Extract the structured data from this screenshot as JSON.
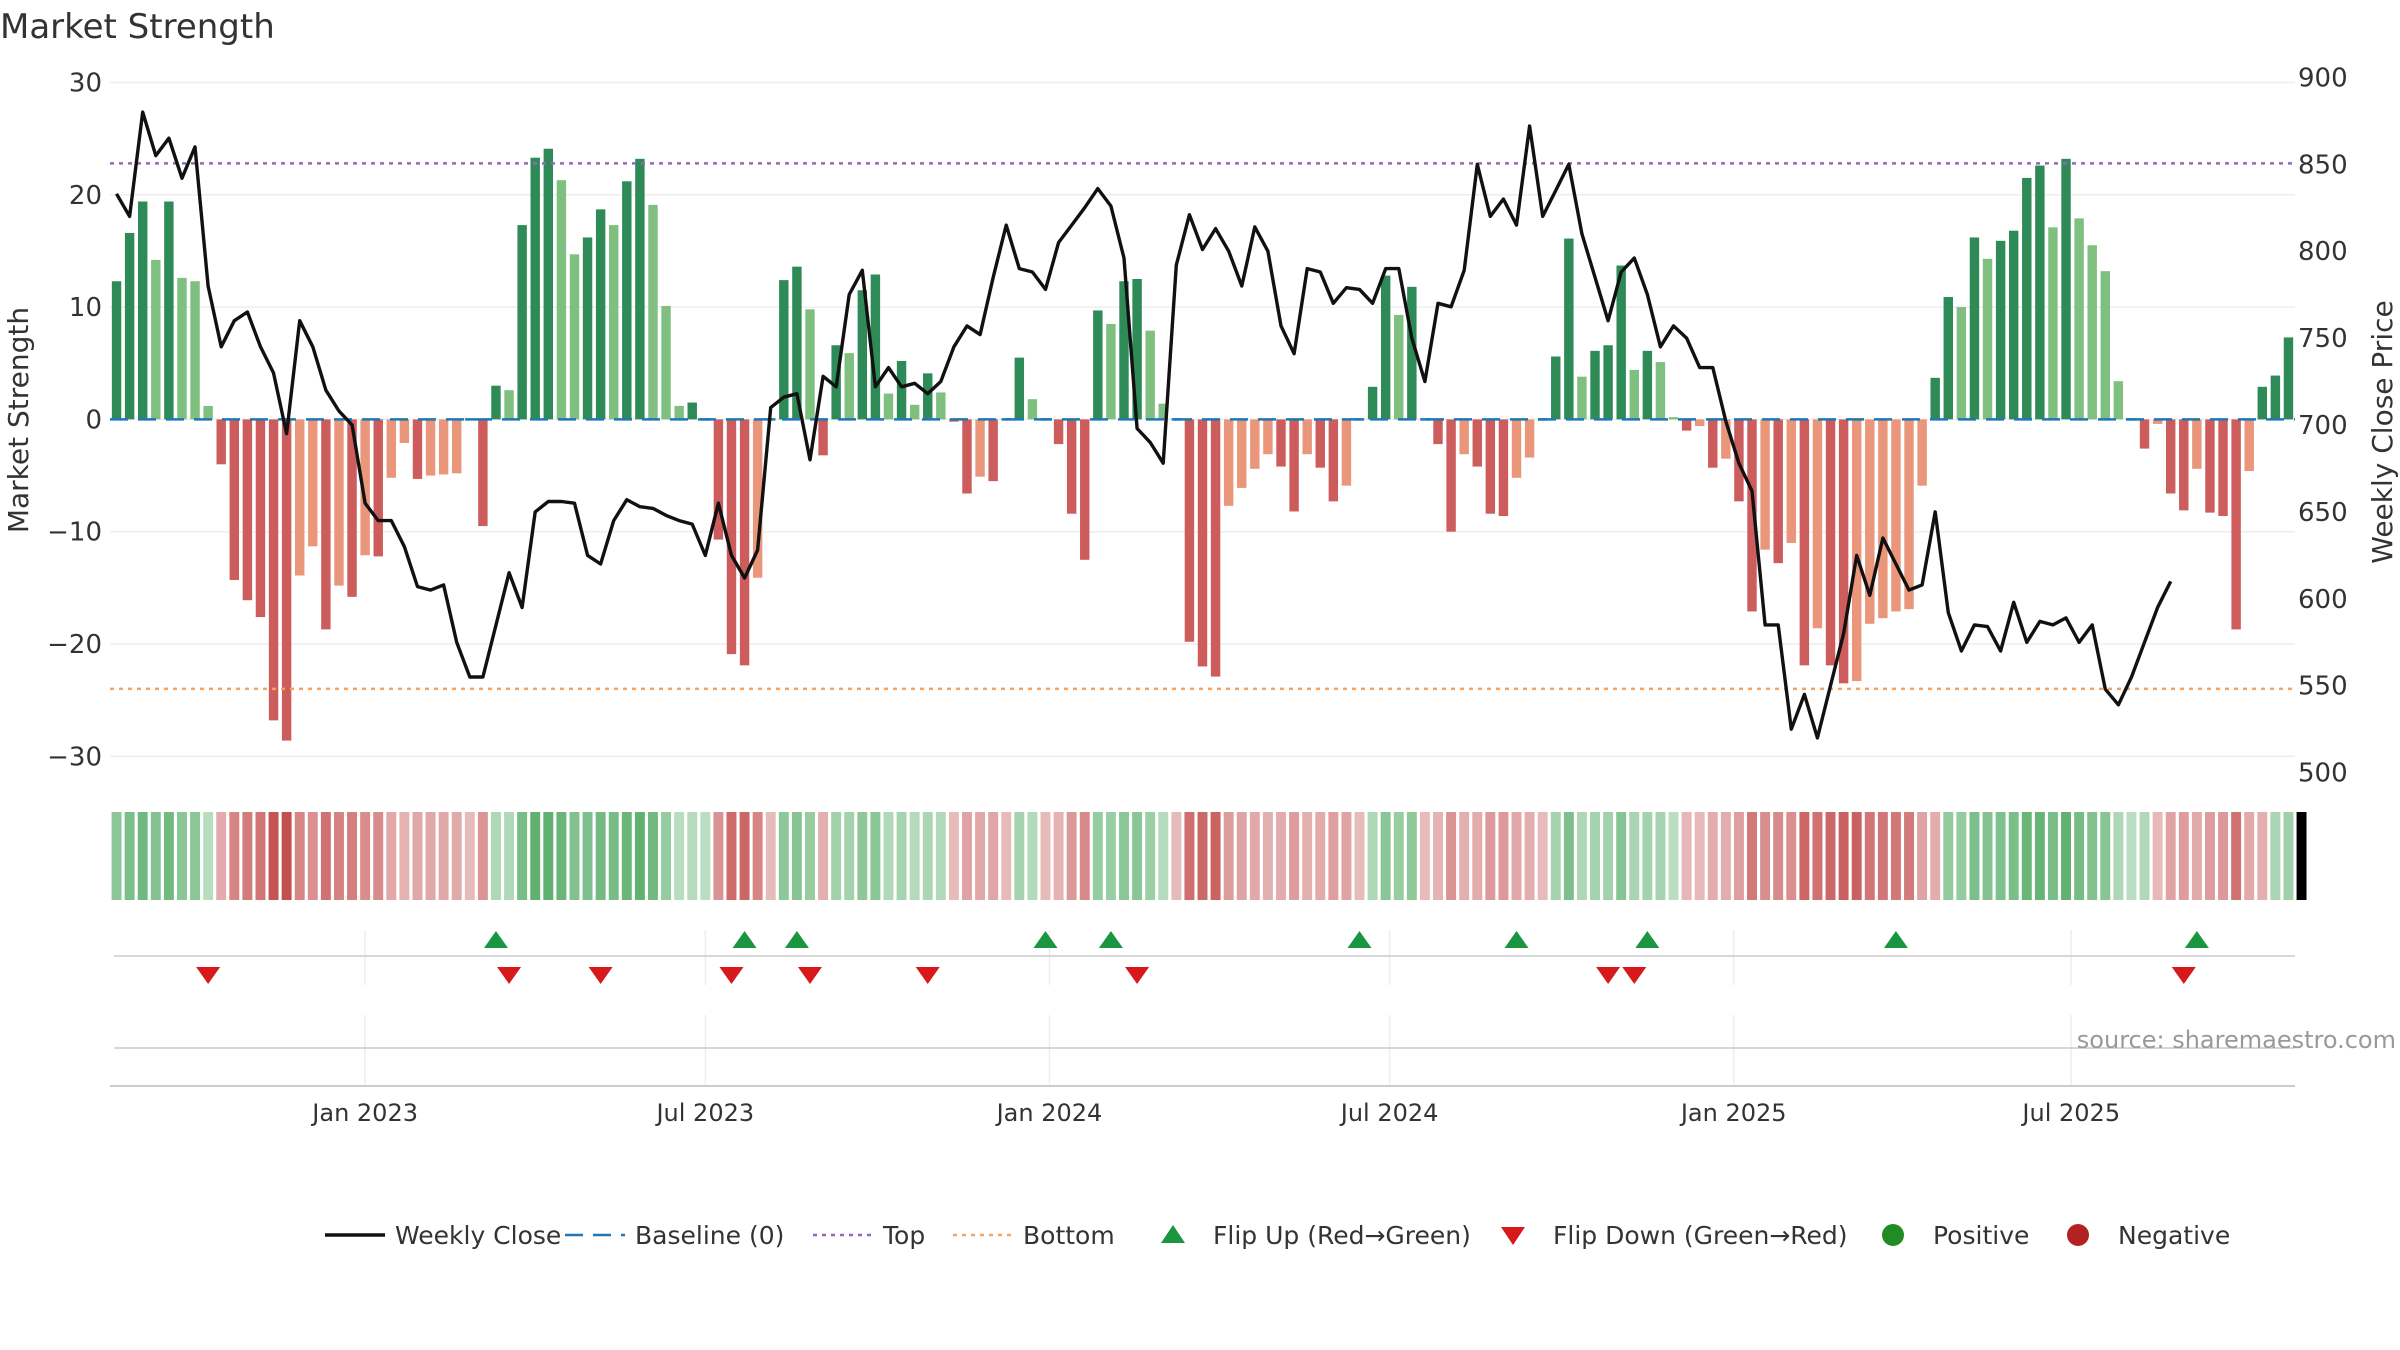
{
  "chart_data": {
    "type": "bar",
    "title": "Market Strength",
    "ylabel_left": "Market Strength",
    "ylabel_right": "Weekly Close Price",
    "ylim_left": [
      -33,
      32
    ],
    "ylim_right": [
      490,
      910
    ],
    "yticks_left": [
      30,
      20,
      10,
      0,
      -10,
      -20,
      -30
    ],
    "yticks_left_labels": [
      "30",
      "20",
      "10",
      "0",
      "−10",
      "−20",
      "−30"
    ],
    "yticks_right": [
      900,
      850,
      800,
      750,
      700,
      650,
      600,
      550,
      500
    ],
    "yticks_right_labels": [
      "900",
      "850",
      "800",
      "750",
      "700",
      "650",
      "600",
      "550",
      "500"
    ],
    "x_start_week": -19,
    "xticks": [
      {
        "label": "Jan 2023",
        "week": 0
      },
      {
        "label": "Jul 2023",
        "week": 26
      },
      {
        "label": "Jan 2024",
        "week": 52.3
      },
      {
        "label": "Jul 2024",
        "week": 78.3
      },
      {
        "label": "Jan 2025",
        "week": 104.6
      },
      {
        "label": "Jul 2025",
        "week": 130.4
      }
    ],
    "top_threshold": 22.8,
    "bottom_threshold": -24,
    "strength": [
      12.3,
      16.6,
      19.4,
      14.2,
      19.4,
      12.6,
      12.3,
      1.2,
      -4,
      -14.3,
      -16.1,
      -17.6,
      -26.8,
      -28.6,
      -13.9,
      -11.3,
      -18.7,
      -14.8,
      -15.8,
      -12.1,
      -12.2,
      -5.2,
      -2.1,
      -5.3,
      -5,
      -4.9,
      -4.8,
      0,
      -9.5,
      3,
      2.6,
      17.3,
      23.3,
      24.1,
      21.3,
      14.7,
      16.2,
      18.7,
      17.3,
      21.2,
      23.2,
      19.1,
      10.1,
      1.2,
      1.5,
      0,
      -10.7,
      -20.9,
      -21.9,
      -14.1,
      0,
      12.4,
      13.6,
      9.8,
      -3.2,
      6.6,
      5.9,
      11.5,
      12.9,
      2.3,
      5.2,
      1.3,
      4.1,
      2.4,
      -0.2,
      -6.6,
      -5.1,
      -5.5,
      0,
      5.5,
      1.8,
      0,
      -2.2,
      -8.4,
      -12.5,
      9.7,
      8.5,
      12.3,
      12.5,
      7.9,
      1.4,
      0,
      -19.8,
      -22,
      -22.9,
      -7.7,
      -6.1,
      -4.4,
      -3.1,
      -4.2,
      -8.2,
      -3.1,
      -4.3,
      -7.3,
      -5.9,
      0,
      2.9,
      12.8,
      9.3,
      11.8,
      0,
      -2.2,
      -10,
      -3.1,
      -4.2,
      -8.4,
      -8.6,
      -5.2,
      -3.4,
      0,
      5.6,
      16.1,
      3.8,
      6.1,
      6.6,
      13.7,
      4.4,
      6.1,
      5.1,
      0.2,
      -1,
      -0.6,
      -4.3,
      -3.5,
      -7.3,
      -17.1,
      -11.6,
      -12.8,
      -11,
      -21.9,
      -18.6,
      -21.9,
      -23.5,
      -23.3,
      -18.2,
      -17.7,
      -17.1,
      -16.9,
      -5.9,
      3.7,
      10.9,
      10,
      16.2,
      14.3,
      15.9,
      16.8,
      21.5,
      22.6,
      17.1,
      23.2,
      17.9,
      15.5,
      13.2,
      3.4,
      0,
      -2.6,
      -0.4,
      -6.6,
      -8.1,
      -4.4,
      -8.3,
      -8.6,
      -18.7,
      -4.6,
      2.9,
      3.9,
      7.3
    ],
    "weekly_close": [
      833,
      820,
      880,
      855,
      865,
      842,
      860,
      780,
      745,
      760,
      765,
      745,
      730,
      695,
      760,
      745,
      720,
      708,
      700,
      655,
      645,
      645,
      630,
      607,
      605,
      608,
      575,
      555,
      555,
      585,
      615,
      595,
      650,
      656,
      656,
      655,
      625,
      620,
      645,
      657,
      653,
      652,
      648,
      645,
      643,
      625,
      655,
      625,
      612,
      628,
      710,
      716,
      718,
      680,
      728,
      722,
      775,
      789,
      722,
      733,
      722,
      724,
      718,
      725,
      745,
      757,
      752,
      785,
      815,
      790,
      788,
      778,
      805,
      815,
      825,
      836,
      826,
      796,
      698,
      690,
      678,
      792,
      821,
      801,
      813,
      800,
      780,
      814,
      800,
      757,
      741,
      790,
      788,
      770,
      779,
      778,
      770,
      790,
      790,
      750,
      725,
      770,
      768,
      789,
      850,
      820,
      830,
      815,
      872,
      820,
      835,
      850,
      810,
      785,
      760,
      788,
      796,
      775,
      745,
      757,
      750,
      733,
      733,
      702,
      678,
      662,
      585,
      585,
      525,
      545,
      520,
      550,
      580,
      625,
      602,
      635,
      620,
      605,
      608,
      650,
      592,
      570,
      585,
      584,
      570,
      598,
      575,
      587,
      585,
      589,
      575,
      585,
      548,
      539,
      555,
      575,
      595,
      610
    ],
    "strength_strip": [
      "pos",
      "pos",
      "pos",
      "pos",
      "pos",
      "pos",
      "pos",
      "pos",
      "neg",
      "neg",
      "neg",
      "neg",
      "neg",
      "neg",
      "neg",
      "neg",
      "neg",
      "neg",
      "neg",
      "neg",
      "neg",
      "neg",
      "neg",
      "neg",
      "neg",
      "neg",
      "neg",
      "neg",
      "neg",
      "pos",
      "pos",
      "pos",
      "pos",
      "pos",
      "pos",
      "pos",
      "pos",
      "pos",
      "pos",
      "pos",
      "pos",
      "pos",
      "pos",
      "pos",
      "pos",
      "pos",
      "neg",
      "neg",
      "neg",
      "neg",
      "neg",
      "pos",
      "pos",
      "pos",
      "neg",
      "pos",
      "pos",
      "pos",
      "pos",
      "pos",
      "pos",
      "pos",
      "pos",
      "pos",
      "neg",
      "neg",
      "neg",
      "neg",
      "neg",
      "pos",
      "pos",
      "neg",
      "neg",
      "neg",
      "neg",
      "pos",
      "pos",
      "pos",
      "pos",
      "pos",
      "pos",
      "neg",
      "neg",
      "neg",
      "neg",
      "neg",
      "neg",
      "neg",
      "neg",
      "neg",
      "neg",
      "neg",
      "neg",
      "neg",
      "neg",
      "neg",
      "pos",
      "pos",
      "pos",
      "pos",
      "neg",
      "neg",
      "neg",
      "neg",
      "neg",
      "neg",
      "neg",
      "neg",
      "neg",
      "neg",
      "pos",
      "pos",
      "pos",
      "pos",
      "pos",
      "pos",
      "pos",
      "pos",
      "pos",
      "pos",
      "neg",
      "neg",
      "neg",
      "neg",
      "neg",
      "neg",
      "neg",
      "neg",
      "neg",
      "neg",
      "neg",
      "neg",
      "neg",
      "neg",
      "neg",
      "neg",
      "neg",
      "neg",
      "neg",
      "neg",
      "pos",
      "pos",
      "pos",
      "pos",
      "pos",
      "pos",
      "pos",
      "pos",
      "pos",
      "pos",
      "pos",
      "pos",
      "pos",
      "pos",
      "pos",
      "pos",
      "neg",
      "neg",
      "neg",
      "neg",
      "neg",
      "neg",
      "neg",
      "neg",
      "neg",
      "pos",
      "pos",
      "pos"
    ],
    "flip_up_weeks": [
      10,
      29,
      33,
      52,
      57,
      76,
      88,
      98,
      117,
      140
    ],
    "flip_down_weeks": [
      -12,
      11,
      18,
      28,
      34,
      43,
      59,
      95,
      97,
      139
    ],
    "legend": [
      {
        "label": "Weekly Close",
        "kind": "line",
        "color": "#111111"
      },
      {
        "label": "Baseline (0)",
        "kind": "dash",
        "color": "#1f77b4"
      },
      {
        "label": "Top",
        "kind": "dot",
        "color": "#9467bd"
      },
      {
        "label": "Bottom",
        "kind": "dot",
        "color": "#f4a261"
      },
      {
        "label": "Flip Up (Red→Green)",
        "kind": "up",
        "color": "#1a9641"
      },
      {
        "label": "Flip Down (Green→Red)",
        "kind": "down",
        "color": "#d7191c"
      },
      {
        "label": "Positive",
        "kind": "circle",
        "color": "#228b22"
      },
      {
        "label": "Negative",
        "kind": "circle",
        "color": "#b22222"
      }
    ],
    "source": "source: sharemaestro.com",
    "colors": {
      "pos_strong": "#2e8b57",
      "pos_weak": "#7fbf7f",
      "neg_strong": "#cd5c5c",
      "neg_weak": "#e9967a",
      "line": "#111111",
      "baseline": "#1f77b4",
      "top": "#9467bd",
      "bottom": "#f4a261"
    }
  }
}
